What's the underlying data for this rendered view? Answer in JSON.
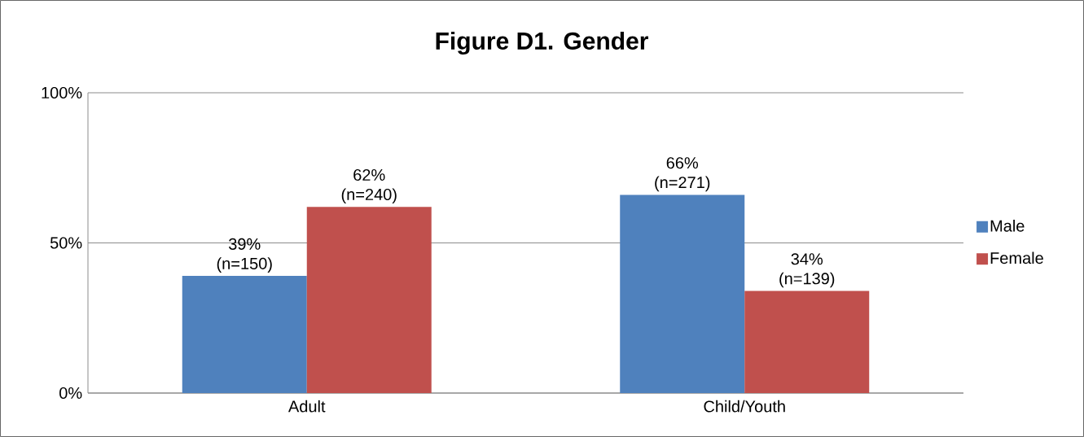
{
  "chart_data": {
    "type": "bar",
    "title": "Figure D1. Gender",
    "categories": [
      "Adult",
      "Child/Youth"
    ],
    "series": [
      {
        "name": "Male",
        "color": "#4f81bd",
        "values": [
          39,
          66
        ],
        "value_labels": [
          "39% (n=150)",
          "66% (n=271)"
        ]
      },
      {
        "name": "Female",
        "color": "#c0504d",
        "values": [
          62,
          34
        ],
        "value_labels": [
          "62% (n=240)",
          "34% (n=139)"
        ]
      }
    ],
    "ylim": [
      0,
      100
    ],
    "yticks": [
      {
        "value": 0,
        "label": "0%"
      },
      {
        "value": 50,
        "label": "50%"
      },
      {
        "value": 100,
        "label": "100%"
      }
    ],
    "grid": "y",
    "legend": "right"
  }
}
